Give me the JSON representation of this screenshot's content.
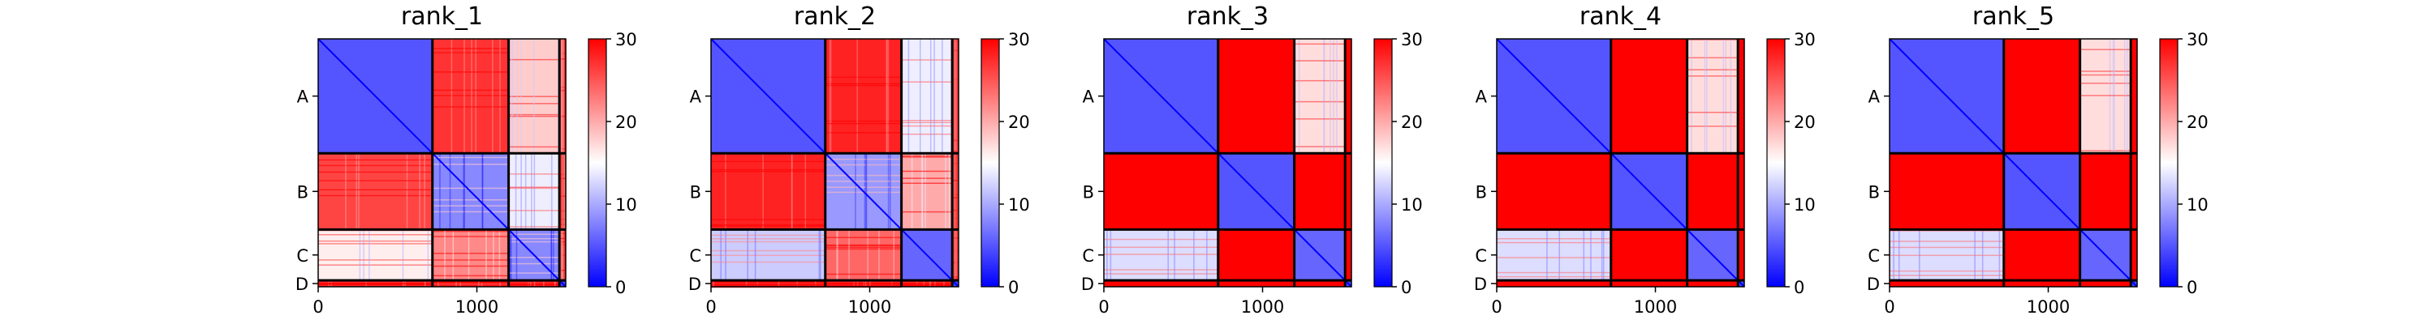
{
  "chart_data": [
    {
      "type": "heatmap",
      "title": "rank_1",
      "row_labels": [
        "A",
        "B",
        "C",
        "D"
      ],
      "x_ticks": [
        0,
        1000
      ],
      "colorbar": {
        "ticks": [
          0,
          10,
          20,
          30
        ],
        "range": [
          0,
          30
        ],
        "colormap": "bwr"
      },
      "blocks": [
        {
          "row": "A",
          "values": [
            5,
            27,
            18,
            27
          ]
        },
        {
          "row": "B",
          "values": [
            26,
            8,
            14,
            27
          ]
        },
        {
          "row": "C",
          "values": [
            16,
            22,
            8,
            27
          ]
        },
        {
          "row": "D",
          "values": [
            27,
            27,
            27,
            4
          ]
        }
      ]
    },
    {
      "type": "heatmap",
      "title": "rank_2",
      "row_labels": [
        "A",
        "B",
        "C",
        "D"
      ],
      "x_ticks": [
        0,
        1000
      ],
      "colorbar": {
        "ticks": [
          0,
          10,
          20,
          30
        ],
        "range": [
          0,
          30
        ],
        "colormap": "bwr"
      },
      "blocks": [
        {
          "row": "A",
          "values": [
            5,
            28,
            14,
            28
          ]
        },
        {
          "row": "B",
          "values": [
            28,
            9,
            20,
            28
          ]
        },
        {
          "row": "C",
          "values": [
            12,
            24,
            6,
            28
          ]
        },
        {
          "row": "D",
          "values": [
            28,
            28,
            28,
            4
          ]
        }
      ]
    },
    {
      "type": "heatmap",
      "title": "rank_3",
      "row_labels": [
        "A",
        "B",
        "C",
        "D"
      ],
      "x_ticks": [
        0,
        1000
      ],
      "colorbar": {
        "ticks": [
          0,
          10,
          20,
          30
        ],
        "range": [
          0,
          30
        ],
        "colormap": "bwr"
      },
      "blocks": [
        {
          "row": "A",
          "values": [
            5,
            30,
            17,
            30
          ]
        },
        {
          "row": "B",
          "values": [
            30,
            5,
            30,
            30
          ]
        },
        {
          "row": "C",
          "values": [
            13,
            30,
            6,
            30
          ]
        },
        {
          "row": "D",
          "values": [
            30,
            30,
            30,
            4
          ]
        }
      ]
    },
    {
      "type": "heatmap",
      "title": "rank_4",
      "row_labels": [
        "A",
        "B",
        "C",
        "D"
      ],
      "x_ticks": [
        0,
        1000
      ],
      "colorbar": {
        "ticks": [
          0,
          10,
          20,
          30
        ],
        "range": [
          0,
          30
        ],
        "colormap": "bwr"
      },
      "blocks": [
        {
          "row": "A",
          "values": [
            5,
            30,
            17,
            30
          ]
        },
        {
          "row": "B",
          "values": [
            30,
            5,
            30,
            30
          ]
        },
        {
          "row": "C",
          "values": [
            13,
            30,
            6,
            30
          ]
        },
        {
          "row": "D",
          "values": [
            30,
            30,
            30,
            4
          ]
        }
      ]
    },
    {
      "type": "heatmap",
      "title": "rank_5",
      "row_labels": [
        "A",
        "B",
        "C",
        "D"
      ],
      "x_ticks": [
        0,
        1000
      ],
      "colorbar": {
        "ticks": [
          0,
          10,
          20,
          30
        ],
        "range": [
          0,
          30
        ],
        "colormap": "bwr"
      },
      "blocks": [
        {
          "row": "A",
          "values": [
            5,
            30,
            17,
            30
          ]
        },
        {
          "row": "B",
          "values": [
            30,
            5,
            30,
            30
          ]
        },
        {
          "row": "C",
          "values": [
            13,
            30,
            6,
            30
          ]
        },
        {
          "row": "D",
          "values": [
            30,
            30,
            30,
            4
          ]
        }
      ]
    }
  ],
  "chain_boundaries": [
    0,
    720,
    1200,
    1520,
    1560
  ],
  "x_range": [
    0,
    1560
  ],
  "separator_color": "#000000",
  "colormap_stops": {
    "low": "#0000ff",
    "mid": "#ffffff",
    "high": "#ff0000"
  }
}
